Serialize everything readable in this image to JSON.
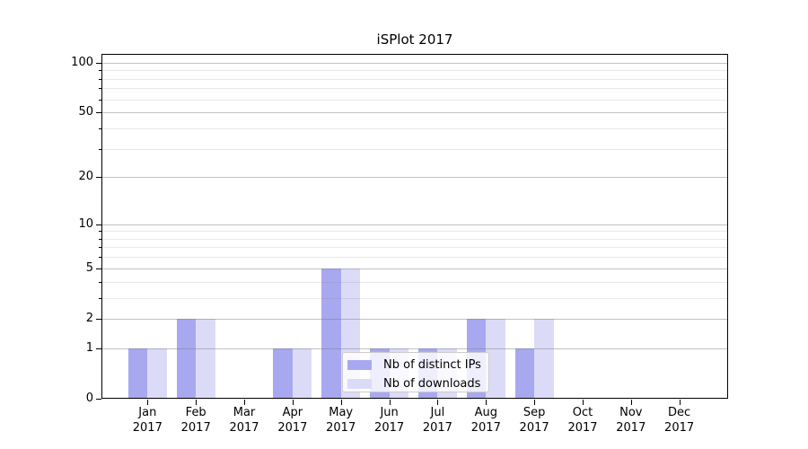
{
  "chart_data": {
    "type": "bar",
    "title": "iSPlot 2017",
    "x_months": [
      "Jan",
      "Feb",
      "Mar",
      "Apr",
      "May",
      "Jun",
      "Jul",
      "Aug",
      "Sep",
      "Oct",
      "Nov",
      "Dec"
    ],
    "x_year": "2017",
    "series": [
      {
        "name": "Nb of distinct IPs",
        "color": "#a8a8f0",
        "values": [
          1,
          2,
          0,
          1,
          5,
          1,
          1,
          2,
          1,
          0,
          0,
          0
        ]
      },
      {
        "name": "Nb of downloads",
        "color": "#dbdbf8",
        "values": [
          1,
          2,
          0,
          1,
          5,
          1,
          1,
          2,
          2,
          0,
          0,
          0
        ]
      }
    ],
    "y_axis": {
      "scale": "log10(value+1)",
      "major_ticks": [
        0,
        1,
        2,
        5,
        10,
        20,
        50,
        100
      ],
      "minor_gridline_values": [
        3,
        4,
        6,
        7,
        8,
        9,
        30,
        40,
        60,
        70,
        80,
        90
      ],
      "top_value": 113
    },
    "grid": true,
    "legend_position": "lower center",
    "colors": {
      "major_grid": "#c6c6c6",
      "minor_grid": "#ebebeb",
      "spine": "#000000",
      "background": "#ffffff"
    }
  }
}
